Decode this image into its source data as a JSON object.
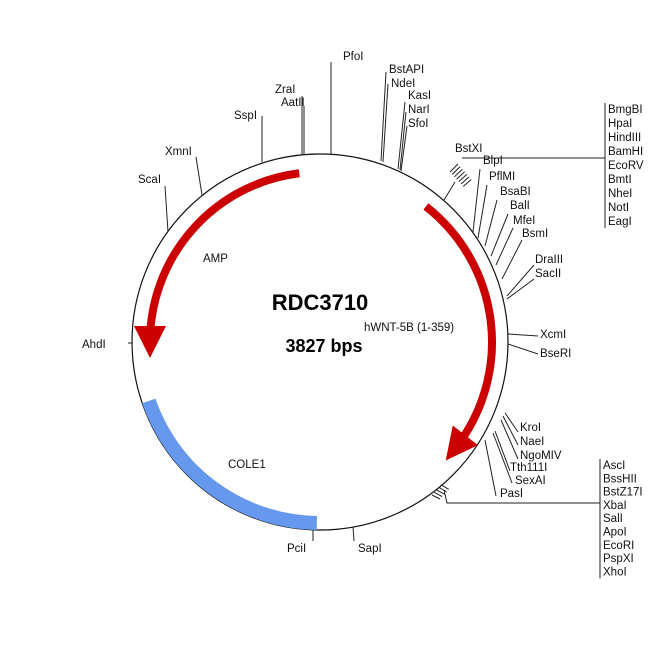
{
  "plasmid": {
    "name": "RDC3710",
    "size": "3827 bps"
  },
  "features": {
    "amp": {
      "label": "AMP",
      "color": "#cc0000"
    },
    "insert": {
      "label": "hWNT-5B (1-359)",
      "color": "#cc0000"
    },
    "ori": {
      "label": "COLE1",
      "color": "#6699ee"
    }
  },
  "sites": {
    "single": [
      "PfoI",
      "BstAPI",
      "NdeI",
      "KasI",
      "NarI",
      "SfoI",
      "ZraI",
      "AatII",
      "SspI",
      "XmnI",
      "ScaI",
      "AhdI",
      "PciI",
      "SapI",
      "BstXI",
      "BlpI",
      "PflMI",
      "BsaBI",
      "BalI",
      "MfeI",
      "BsmI",
      "DraIII",
      "SacII",
      "XcmI",
      "BseRI",
      "KroI",
      "NaeI",
      "NgoMIV",
      "Tth111I",
      "SexAI",
      "PasI"
    ],
    "cluster_top": [
      "BmgBI",
      "HpaI",
      "HindIII",
      "BamHI",
      "EcoRV",
      "BmtI",
      "NheI",
      "NotI",
      "EagI"
    ],
    "cluster_bottom": [
      "AscI",
      "BssHII",
      "BstZ17I",
      "XbaI",
      "SalI",
      "ApoI",
      "EcoRI",
      "PspXI",
      "XhoI"
    ]
  }
}
